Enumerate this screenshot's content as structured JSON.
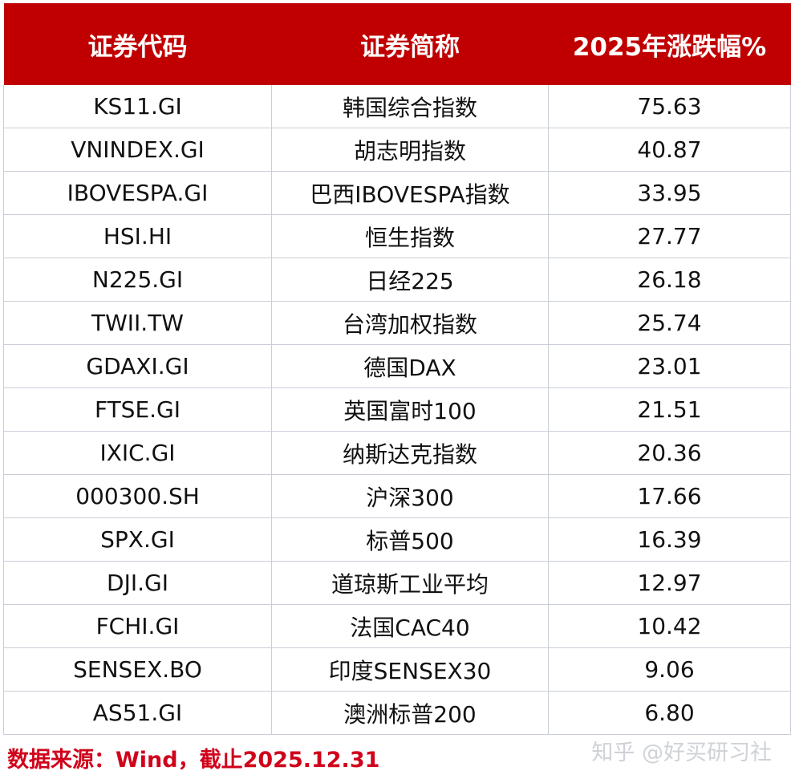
{
  "table": {
    "headers": [
      "证券代码",
      "证券简称",
      "2025年涨跌幅%"
    ],
    "rows": [
      {
        "code": "KS11.GI",
        "name": "韩国综合指数",
        "change": "75.63"
      },
      {
        "code": "VNINDEX.GI",
        "name": "胡志明指数",
        "change": "40.87"
      },
      {
        "code": "IBOVESPA.GI",
        "name": "巴西IBOVESPA指数",
        "change": "33.95"
      },
      {
        "code": "HSI.HI",
        "name": "恒生指数",
        "change": "27.77"
      },
      {
        "code": "N225.GI",
        "name": "日经225",
        "change": "26.18"
      },
      {
        "code": "TWII.TW",
        "name": "台湾加权指数",
        "change": "25.74"
      },
      {
        "code": "GDAXI.GI",
        "name": "德国DAX",
        "change": "23.01"
      },
      {
        "code": "FTSE.GI",
        "name": "英国富时100",
        "change": "21.51"
      },
      {
        "code": "IXIC.GI",
        "name": "纳斯达克指数",
        "change": "20.36"
      },
      {
        "code": "000300.SH",
        "name": "沪深300",
        "change": "17.66"
      },
      {
        "code": "SPX.GI",
        "name": "标普500",
        "change": "16.39"
      },
      {
        "code": "DJI.GI",
        "name": "道琼斯工业平均",
        "change": "12.97"
      },
      {
        "code": "FCHI.GI",
        "name": "法国CAC40",
        "change": "10.42"
      },
      {
        "code": "SENSEX.BO",
        "name": "印度SENSEX30",
        "change": "9.06"
      },
      {
        "code": "AS51.GI",
        "name": "澳洲标普200",
        "change": "6.80"
      }
    ]
  },
  "footer": {
    "source_note": "数据来源：Wind，截止2025.12.31",
    "watermark": "知乎 @好买研习社"
  },
  "colors": {
    "header_background": "#c00000",
    "header_text": "#ffffff",
    "source_note_text": "#d0021b",
    "grid_lines": "#c9ced8"
  }
}
